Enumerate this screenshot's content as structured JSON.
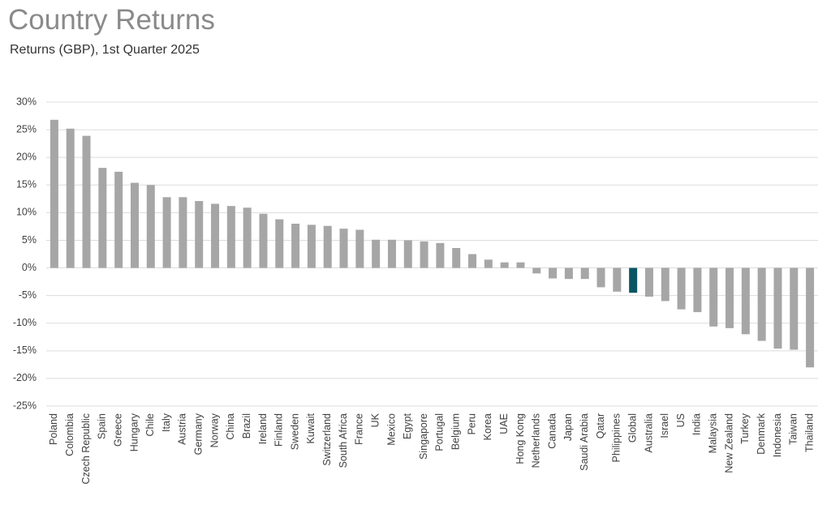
{
  "chart_data": {
    "type": "bar",
    "title": "Country Returns",
    "subtitle": "Returns (GBP), 1st Quarter 2025",
    "categories": [
      "Poland",
      "Colombia",
      "Czech Republic",
      "Spain",
      "Greece",
      "Hungary",
      "Chile",
      "Italy",
      "Austria",
      "Germany",
      "Norway",
      "China",
      "Brazil",
      "Ireland",
      "Finland",
      "Sweden",
      "Kuwait",
      "Switzerland",
      "South Africa",
      "France",
      "UK",
      "Mexico",
      "Egypt",
      "Singapore",
      "Portugal",
      "Belgium",
      "Peru",
      "Korea",
      "UAE",
      "Hong Kong",
      "Netherlands",
      "Canada",
      "Japan",
      "Saudi Arabia",
      "Qatar",
      "Philippines",
      "Global",
      "Australia",
      "Israel",
      "US",
      "India",
      "Malaysia",
      "New Zealand",
      "Turkey",
      "Denmark",
      "Indonesia",
      "Taiwan",
      "Thailand"
    ],
    "values": [
      26.8,
      25.2,
      23.9,
      18.1,
      17.4,
      15.4,
      15.0,
      12.8,
      12.8,
      12.1,
      11.6,
      11.2,
      10.9,
      9.8,
      8.8,
      8.0,
      7.8,
      7.6,
      7.1,
      6.9,
      5.1,
      5.1,
      5.0,
      4.8,
      4.5,
      3.6,
      2.5,
      1.5,
      1.0,
      1.0,
      -1.0,
      -1.9,
      -2.0,
      -2.0,
      -3.5,
      -4.3,
      -4.5,
      -5.2,
      -6.0,
      -7.5,
      -8.0,
      -10.6,
      -10.9,
      -12.0,
      -13.2,
      -14.6,
      -14.8,
      -18.0
    ],
    "colors": [
      "#a6a6a6",
      "#a6a6a6",
      "#a6a6a6",
      "#a6a6a6",
      "#a6a6a6",
      "#a6a6a6",
      "#a6a6a6",
      "#a6a6a6",
      "#a6a6a6",
      "#a6a6a6",
      "#a6a6a6",
      "#a6a6a6",
      "#a6a6a6",
      "#a6a6a6",
      "#a6a6a6",
      "#a6a6a6",
      "#a6a6a6",
      "#a6a6a6",
      "#a6a6a6",
      "#a6a6a6",
      "#a6a6a6",
      "#a6a6a6",
      "#a6a6a6",
      "#a6a6a6",
      "#a6a6a6",
      "#a6a6a6",
      "#a6a6a6",
      "#a6a6a6",
      "#a6a6a6",
      "#a6a6a6",
      "#a6a6a6",
      "#a6a6a6",
      "#a6a6a6",
      "#a6a6a6",
      "#a6a6a6",
      "#a6a6a6",
      "#0b5563",
      "#a6a6a6",
      "#a6a6a6",
      "#a6a6a6",
      "#a6a6a6",
      "#a6a6a6",
      "#a6a6a6",
      "#a6a6a6",
      "#a6a6a6",
      "#a6a6a6",
      "#a6a6a6",
      "#a6a6a6"
    ],
    "ylim": [
      -25,
      30
    ],
    "yticks": [
      {
        "value": 30,
        "label": "30%"
      },
      {
        "value": 25,
        "label": "25%"
      },
      {
        "value": 20,
        "label": "20%"
      },
      {
        "value": 15,
        "label": "15%"
      },
      {
        "value": 10,
        "label": "10%"
      },
      {
        "value": 5,
        "label": "5%"
      },
      {
        "value": 0,
        "label": "0%"
      },
      {
        "value": -5,
        "label": "-5%"
      },
      {
        "value": -10,
        "label": "-10%"
      },
      {
        "value": -15,
        "label": "-15%"
      },
      {
        "value": -20,
        "label": "-20%"
      },
      {
        "value": -25,
        "label": "-25%"
      }
    ],
    "grid": true
  }
}
